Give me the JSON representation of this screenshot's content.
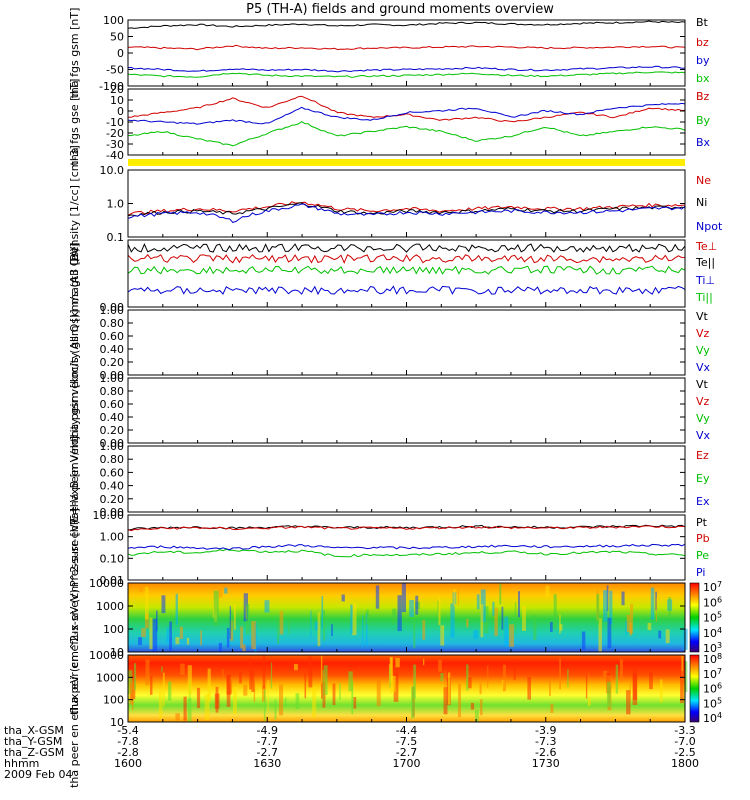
{
  "title": "P5 (TH-A) fields and ground moments overview",
  "date": "2009 Feb 04",
  "chart_data": [
    {
      "type": "line",
      "ylabel": "tha fgs gsm [nT]",
      "ylim": [
        -100,
        100
      ],
      "yticks": [
        "100",
        "50",
        "0",
        "-50",
        "-100"
      ],
      "series": [
        {
          "name": "Bt",
          "color": "#000000",
          "values": [
            75,
            82,
            86,
            80,
            84,
            88,
            82,
            86,
            84,
            90,
            92,
            88,
            86,
            90,
            92,
            95,
            92
          ]
        },
        {
          "name": "bz",
          "color": "#d00000",
          "values": [
            18,
            15,
            12,
            22,
            14,
            16,
            12,
            15,
            16,
            18,
            20,
            18,
            15,
            16,
            18,
            20,
            16
          ]
        },
        {
          "name": "by",
          "color": "#0000d0",
          "values": [
            -45,
            -50,
            -55,
            -48,
            -52,
            -50,
            -55,
            -52,
            -50,
            -48,
            -45,
            -50,
            -52,
            -48,
            -45,
            -42,
            -45
          ]
        },
        {
          "name": "bx",
          "color": "#00c000",
          "values": [
            -65,
            -70,
            -72,
            -60,
            -68,
            -70,
            -72,
            -70,
            -68,
            -65,
            -62,
            -68,
            -70,
            -66,
            -62,
            -58,
            -60
          ]
        }
      ]
    },
    {
      "type": "line",
      "ylabel": "tha fgs gse [nT]",
      "ylim": [
        -45,
        25
      ],
      "yticks": [
        "20",
        "10",
        "0",
        "-10",
        "-20",
        "-30",
        "-40"
      ],
      "series": [
        {
          "name": "Bz",
          "color": "#d00000",
          "values": [
            -5,
            0,
            5,
            15,
            5,
            18,
            0,
            -5,
            -2,
            -8,
            -5,
            -10,
            -5,
            0,
            -5,
            5,
            2
          ]
        },
        {
          "name": "By",
          "color": "#00c000",
          "values": [
            -25,
            -20,
            -28,
            -35,
            -22,
            -10,
            -25,
            -20,
            -15,
            -20,
            -30,
            -25,
            -15,
            -25,
            -20,
            -15,
            -18
          ]
        },
        {
          "name": "Bx",
          "color": "#0000d0",
          "values": [
            -8,
            -10,
            -12,
            -8,
            -12,
            5,
            -5,
            -8,
            0,
            2,
            5,
            -5,
            2,
            -2,
            5,
            8,
            10
          ]
        }
      ]
    },
    {
      "type": "line",
      "ylabel": "Density [1/cc] [cm-3]",
      "yscale": "log",
      "ylim": [
        0.1,
        10
      ],
      "yticks": [
        "10.0",
        "1.0",
        "0.1"
      ],
      "series": [
        {
          "name": "Ne",
          "color": "#d00000",
          "values": [
            0.5,
            0.6,
            0.7,
            0.6,
            0.8,
            1.1,
            0.7,
            0.6,
            0.7,
            0.6,
            0.7,
            0.8,
            0.7,
            0.7,
            0.8,
            0.9,
            0.9
          ]
        },
        {
          "name": "Ni",
          "color": "#000000",
          "values": [
            0.45,
            0.55,
            0.6,
            0.5,
            0.7,
            1.0,
            0.6,
            0.5,
            0.6,
            0.55,
            0.6,
            0.7,
            0.6,
            0.6,
            0.7,
            0.75,
            0.8
          ]
        },
        {
          "name": "Npot",
          "color": "#0000d0",
          "values": [
            0.4,
            0.5,
            0.55,
            0.3,
            0.6,
            0.9,
            0.5,
            0.45,
            0.55,
            0.5,
            0.55,
            0.6,
            0.55,
            0.55,
            0.6,
            0.7,
            0.75
          ]
        }
      ]
    },
    {
      "type": "line",
      "ylabel": "magt3 [eV]",
      "series_names": [
        "Te⊥",
        "Te||",
        "Ti⊥",
        "Ti||"
      ],
      "series_colors": [
        "#d00000",
        "#000000",
        "#0000d0",
        "#00c000"
      ],
      "yticks": [
        "0.00"
      ]
    },
    {
      "type": "line",
      "ylabel": "tha peir velocity gsm [km/s (All Qs)]",
      "ylim": [
        0,
        1
      ],
      "yticks": [
        "1.00",
        "0.80",
        "0.60",
        "0.40",
        "0.20",
        "0.00"
      ],
      "series_names": [
        "Vt",
        "Vz",
        "Vy",
        "Vx"
      ],
      "series_colors": [
        "#000000",
        "#d00000",
        "#00c000",
        "#0000d0"
      ]
    },
    {
      "type": "line",
      "ylabel": "tha peer velocity gsm [km/s (All Qs)]",
      "ylim": [
        0,
        1
      ],
      "yticks": [
        "1.00",
        "0.80",
        "0.60",
        "0.40",
        "0.20",
        "0.00"
      ],
      "series_names": [
        "Vt",
        "Vz",
        "Vy",
        "Vx"
      ],
      "series_colors": [
        "#000000",
        "#d00000",
        "#00c000",
        "#0000d0"
      ]
    },
    {
      "type": "line",
      "ylabel": "E=-VxB [mV/m]",
      "ylim": [
        0,
        1
      ],
      "yticks": [
        "1.00",
        "0.80",
        "0.60",
        "0.40",
        "0.20",
        "0.00"
      ],
      "series_names": [
        "Ez",
        "Ey",
        "Ex"
      ],
      "series_colors": [
        "#d00000",
        "#00c000",
        "#0000d0"
      ]
    },
    {
      "type": "line",
      "ylabel": "Pressure [nPa]",
      "yscale": "log",
      "ylim": [
        0.01,
        10
      ],
      "yticks": [
        "10.00",
        "1.00",
        "0.10",
        "0.01"
      ],
      "series": [
        {
          "name": "Pt",
          "color": "#000000",
          "values": [
            2.2,
            2.6,
            2.8,
            2.5,
            2.7,
            3.0,
            2.6,
            2.7,
            2.6,
            2.8,
            3.0,
            2.8,
            2.7,
            2.8,
            3.0,
            3.2,
            3.0
          ]
        },
        {
          "name": "Pb",
          "color": "#d00000",
          "values": [
            2.0,
            2.4,
            2.6,
            2.3,
            2.5,
            2.8,
            2.4,
            2.5,
            2.4,
            2.6,
            2.8,
            2.6,
            2.5,
            2.6,
            2.8,
            3.0,
            2.8
          ]
        },
        {
          "name": "Pe",
          "color": "#00c000",
          "values": [
            0.15,
            0.2,
            0.18,
            0.25,
            0.2,
            0.22,
            0.12,
            0.15,
            0.14,
            0.16,
            0.18,
            0.2,
            0.16,
            0.18,
            0.2,
            0.16,
            0.14
          ]
        },
        {
          "name": "Pi",
          "color": "#0000d0",
          "values": [
            0.3,
            0.35,
            0.3,
            0.28,
            0.35,
            0.4,
            0.3,
            0.32,
            0.3,
            0.32,
            0.35,
            0.38,
            0.34,
            0.36,
            0.38,
            0.4,
            0.42
          ]
        }
      ]
    },
    {
      "type": "heatmap",
      "ylabel": "tha peir en eflux eV (cm^2-s-sr-eV)",
      "yticks": [
        "10000",
        "1000",
        "100",
        "10"
      ],
      "colorbar_ticks": [
        "10^7",
        "10^6",
        "10^5",
        "10^4",
        "10^3"
      ]
    },
    {
      "type": "heatmap",
      "ylabel": "tha peer en eflux eV (cm^2-s-sr-eV)",
      "yticks": [
        "10000",
        "1000",
        "100",
        "10"
      ],
      "colorbar_ticks": [
        "10^8",
        "10^7",
        "10^6",
        "10^5",
        "10^4"
      ]
    }
  ],
  "bottom_axis": {
    "row_labels": [
      "tha_X-GSM",
      "tha_Y-GSM",
      "tha_Z-GSM",
      "hhmm"
    ],
    "columns": [
      {
        "x": "-5.4",
        "y": "-7.8",
        "z": "-2.8",
        "t": "1600"
      },
      {
        "x": "-4.9",
        "y": "-7.7",
        "z": "-2.7",
        "t": "1630"
      },
      {
        "x": "-4.4",
        "y": "-7.5",
        "z": "-2.7",
        "t": "1700"
      },
      {
        "x": "-3.9",
        "y": "-7.3",
        "z": "-2.6",
        "t": "1730"
      },
      {
        "x": "-3.3",
        "y": "-7.0",
        "z": "-2.5",
        "t": "1800"
      }
    ]
  }
}
